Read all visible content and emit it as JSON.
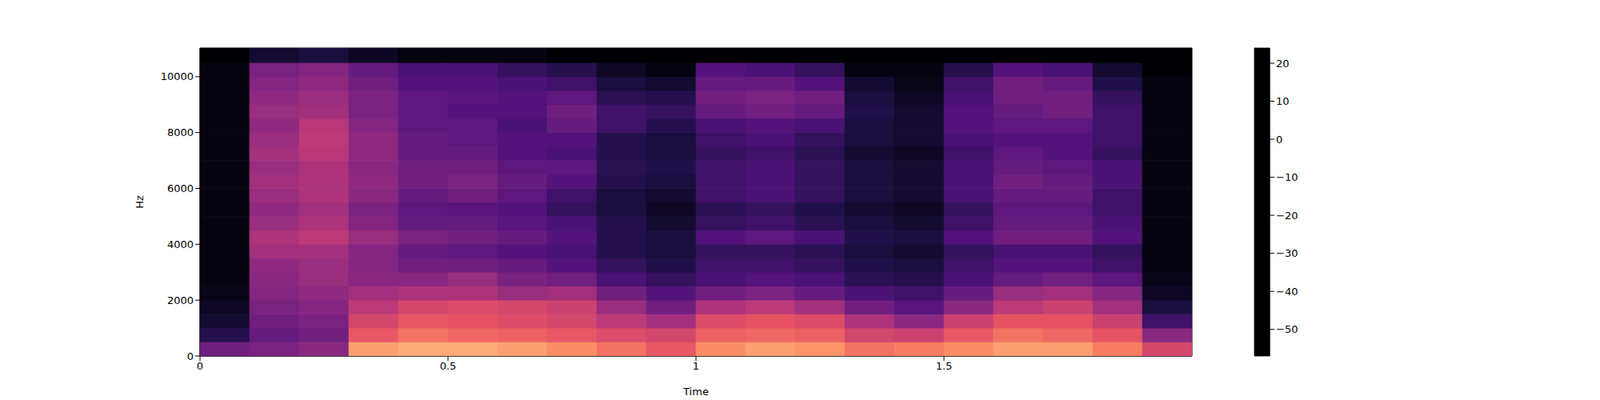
{
  "chart_data": {
    "type": "heatmap",
    "x_label": "Time",
    "y_label": "Hz",
    "color": "magma",
    "xlim": [
      0,
      2.0
    ],
    "xticks": [
      0,
      0.5,
      1,
      1.5
    ],
    "ylim": [
      0,
      11025
    ],
    "yticks": [
      0,
      2000,
      4000,
      6000,
      8000,
      10000
    ],
    "time_bins": [
      0,
      0.1,
      0.2,
      0.3,
      0.4,
      0.5,
      0.6,
      0.7,
      0.8,
      0.9,
      1.0,
      1.1,
      1.2,
      1.3,
      1.4,
      1.5,
      1.6,
      1.7,
      1.8,
      1.9,
      2.0
    ],
    "freq_bins": [
      0,
      500,
      1000,
      1500,
      2000,
      2500,
      3000,
      3500,
      4000,
      4500,
      5000,
      5500,
      6000,
      6500,
      7000,
      7500,
      8000,
      8500,
      9000,
      9500,
      10000,
      10500,
      11025
    ],
    "cells": [
      [
        -30,
        -45,
        -50,
        -52,
        -54,
        -55,
        -55,
        -55,
        -55,
        -55,
        -55,
        -55,
        -55,
        -55,
        -55,
        -55,
        -55,
        -55,
        -55,
        -55,
        -55,
        -57
      ],
      [
        -28,
        -32,
        -30,
        -28,
        -26,
        -25,
        -24,
        -20,
        -18,
        -22,
        -24,
        -22,
        -20,
        -22,
        -20,
        -22,
        -24,
        -22,
        -24,
        -26,
        -28,
        -50
      ],
      [
        -25,
        -30,
        -28,
        -26,
        -24,
        -22,
        -22,
        -20,
        -15,
        -18,
        -20,
        -18,
        -18,
        -18,
        -16,
        -15,
        -16,
        -20,
        -22,
        -24,
        -26,
        -48
      ],
      [
        8,
        -5,
        -10,
        -15,
        -20,
        -25,
        -26,
        -26,
        -22,
        -26,
        -28,
        -25,
        -24,
        -25,
        -24,
        -24,
        -26,
        -28,
        -28,
        -30,
        -32,
        -52
      ],
      [
        10,
        0,
        -5,
        -10,
        -18,
        -25,
        -30,
        -32,
        -28,
        -32,
        -34,
        -32,
        -30,
        -30,
        -32,
        -32,
        -34,
        -34,
        -34,
        -36,
        -38,
        -55
      ],
      [
        10,
        -2,
        -6,
        -8,
        -18,
        -22,
        -30,
        -34,
        -30,
        -32,
        -35,
        -30,
        -28,
        -30,
        -32,
        -34,
        -34,
        -36,
        -35,
        -36,
        -38,
        -55
      ],
      [
        8,
        -3,
        -8,
        -10,
        -22,
        -28,
        -32,
        -36,
        -32,
        -35,
        -36,
        -34,
        -32,
        -34,
        -36,
        -36,
        -38,
        -36,
        -36,
        -38,
        -42,
        -55
      ],
      [
        5,
        -5,
        -10,
        -12,
        -20,
        -30,
        -36,
        -38,
        -36,
        -38,
        -42,
        -40,
        -36,
        -34,
        -38,
        -36,
        -32,
        -30,
        -34,
        -40,
        -45,
        -57
      ],
      [
        0,
        -8,
        -15,
        -22,
        -30,
        -38,
        -42,
        -45,
        -45,
        -45,
        -48,
        -48,
        -45,
        -44,
        -45,
        -45,
        -40,
        -40,
        -44,
        -48,
        -52,
        -57
      ],
      [
        -5,
        -10,
        -20,
        -30,
        -36,
        -42,
        -46,
        -48,
        -48,
        -50,
        -52,
        -50,
        -48,
        -46,
        -48,
        -48,
        -45,
        -42,
        -45,
        -50,
        -55,
        -57
      ],
      [
        5,
        -3,
        -8,
        -18,
        -30,
        -38,
        -40,
        -42,
        -36,
        -42,
        -44,
        -40,
        -40,
        -40,
        -42,
        -40,
        -38,
        -32,
        -30,
        -32,
        -36,
        -57
      ],
      [
        8,
        -2,
        -6,
        -15,
        -28,
        -36,
        -40,
        -42,
        -34,
        -40,
        -42,
        -38,
        -38,
        -38,
        -40,
        -38,
        -36,
        -30,
        -28,
        -32,
        -38,
        -57
      ],
      [
        6,
        -3,
        -8,
        -20,
        -32,
        -38,
        -42,
        -44,
        -38,
        -44,
        -46,
        -42,
        -42,
        -42,
        -44,
        -42,
        -38,
        -32,
        -30,
        -36,
        -42,
        -57
      ],
      [
        0,
        -10,
        -18,
        -30,
        -38,
        -44,
        -46,
        -48,
        -46,
        -48,
        -50,
        -48,
        -48,
        -48,
        -50,
        -48,
        -48,
        -46,
        -48,
        -50,
        -55,
        -57
      ],
      [
        2,
        -12,
        -25,
        -35,
        -40,
        -45,
        -48,
        -50,
        -48,
        -50,
        -52,
        -50,
        -50,
        -50,
        -52,
        -50,
        -50,
        -50,
        -52,
        -54,
        -55,
        -57
      ],
      [
        5,
        -5,
        -12,
        -25,
        -32,
        -38,
        -40,
        -42,
        -36,
        -40,
        -42,
        -38,
        -38,
        -38,
        -40,
        -38,
        -36,
        -36,
        -38,
        -40,
        -45,
        -57
      ],
      [
        8,
        0,
        -6,
        -15,
        -22,
        -32,
        -36,
        -38,
        -30,
        -32,
        -34,
        -32,
        -30,
        -32,
        -34,
        -36,
        -34,
        -32,
        -30,
        -30,
        -36,
        -57
      ],
      [
        8,
        -2,
        -6,
        -12,
        -20,
        -30,
        -36,
        -38,
        -30,
        -32,
        -34,
        -32,
        -32,
        -34,
        -36,
        -36,
        -34,
        -30,
        -30,
        -32,
        -38,
        -57
      ],
      [
        2,
        -6,
        -12,
        -20,
        -26,
        -34,
        -40,
        -42,
        -36,
        -38,
        -40,
        -40,
        -38,
        -38,
        -42,
        -40,
        -40,
        -40,
        -42,
        -46,
        -50,
        -57
      ],
      [
        -10,
        -25,
        -40,
        -48,
        -52,
        -54,
        -55,
        -55,
        -55,
        -55,
        -55,
        -55,
        -55,
        -55,
        -55,
        -55,
        -55,
        -55,
        -55,
        -55,
        -57,
        -57
      ]
    ],
    "colorbar": {
      "range": [
        -57,
        24
      ],
      "ticks": [
        {
          "value": -50,
          "label": "−50"
        },
        {
          "value": -40,
          "label": "−40"
        },
        {
          "value": -30,
          "label": "−30"
        },
        {
          "value": -20,
          "label": "−20"
        },
        {
          "value": -10,
          "label": "−10"
        },
        0,
        10,
        20
      ]
    }
  }
}
